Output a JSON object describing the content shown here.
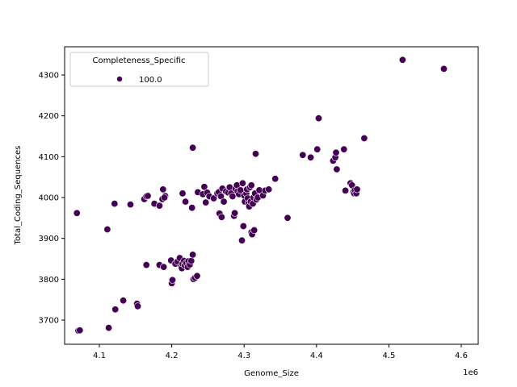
{
  "chart_data": {
    "type": "scatter",
    "title": "",
    "xlabel": "Genome_Size",
    "ylabel": "Total_Coding_Sequences",
    "x_offset_label": "1e6",
    "xlim": [
      4.043,
      4.615
    ],
    "ylim": [
      3640,
      4365
    ],
    "xticks": [
      4.1,
      4.2,
      4.3,
      4.4,
      4.5,
      4.6
    ],
    "xtick_labels": [
      "4.1",
      "4.2",
      "4.3",
      "4.4",
      "4.5",
      "4.6"
    ],
    "yticks": [
      3700,
      3800,
      3900,
      4000,
      4100,
      4200,
      4300
    ],
    "ytick_labels": [
      "3700",
      "3800",
      "3900",
      "4000",
      "4100",
      "4200",
      "4300"
    ],
    "grid": false,
    "legend": {
      "title": "Completeness_Specific",
      "position": "upper left",
      "entries": [
        {
          "label": "100.0",
          "color": "#440154"
        }
      ]
    },
    "marker_color": "#440154",
    "series": [
      {
        "name": "100.0",
        "points": [
          [
            4.069,
            3962
          ],
          [
            4.071,
            3674
          ],
          [
            4.073,
            3675
          ],
          [
            4.111,
            3922
          ],
          [
            4.113,
            3681
          ],
          [
            4.121,
            3985
          ],
          [
            4.122,
            3726
          ],
          [
            4.133,
            3748
          ],
          [
            4.143,
            3983
          ],
          [
            4.152,
            3740
          ],
          [
            4.153,
            3734
          ],
          [
            4.162,
            3996
          ],
          [
            4.165,
            4003
          ],
          [
            4.167,
            4004
          ],
          [
            4.165,
            3835
          ],
          [
            4.176,
            3985
          ],
          [
            4.183,
            3980
          ],
          [
            4.183,
            3835
          ],
          [
            4.187,
            3996
          ],
          [
            4.188,
            4020
          ],
          [
            4.189,
            3830
          ],
          [
            4.191,
            4004
          ],
          [
            4.19,
            4000
          ],
          [
            4.199,
            3846
          ],
          [
            4.2,
            3790
          ],
          [
            4.201,
            3798
          ],
          [
            4.205,
            3838
          ],
          [
            4.208,
            3843
          ],
          [
            4.211,
            3852
          ],
          [
            4.213,
            3832
          ],
          [
            4.214,
            3827
          ],
          [
            4.215,
            3838
          ],
          [
            4.217,
            3845
          ],
          [
            4.218,
            3834
          ],
          [
            4.22,
            3840
          ],
          [
            4.222,
            3830
          ],
          [
            4.223,
            3844
          ],
          [
            4.225,
            3836
          ],
          [
            4.227,
            3845
          ],
          [
            4.229,
            3860
          ],
          [
            4.215,
            4010
          ],
          [
            4.219,
            3990
          ],
          [
            4.228,
            3975
          ],
          [
            4.229,
            4122
          ],
          [
            4.23,
            3800
          ],
          [
            4.232,
            3803
          ],
          [
            4.235,
            3808
          ],
          [
            4.236,
            4013
          ],
          [
            4.243,
            4008
          ],
          [
            4.245,
            4026
          ],
          [
            4.247,
            3988
          ],
          [
            4.249,
            4012
          ],
          [
            4.252,
            4003
          ],
          [
            4.258,
            3998
          ],
          [
            4.263,
            4010
          ],
          [
            4.265,
            4013
          ],
          [
            4.266,
            3961
          ],
          [
            4.268,
            4003
          ],
          [
            4.27,
            4022
          ],
          [
            4.269,
            3952
          ],
          [
            4.272,
            3990
          ],
          [
            4.275,
            4015
          ],
          [
            4.278,
            4012
          ],
          [
            4.28,
            4025
          ],
          [
            4.282,
            4010
          ],
          [
            4.284,
            4003
          ],
          [
            4.286,
            3955
          ],
          [
            4.287,
            3962
          ],
          [
            4.288,
            4022
          ],
          [
            4.29,
            4030
          ],
          [
            4.291,
            4015
          ],
          [
            4.293,
            4008
          ],
          [
            4.295,
            4018
          ],
          [
            4.297,
            3895
          ],
          [
            4.298,
            4035
          ],
          [
            4.299,
            3930
          ],
          [
            4.3,
            4005
          ],
          [
            4.301,
            3990
          ],
          [
            4.303,
            4010
          ],
          [
            4.304,
            4020
          ],
          [
            4.305,
            3998
          ],
          [
            4.306,
            3985
          ],
          [
            4.307,
            3978
          ],
          [
            4.308,
            4025
          ],
          [
            4.309,
            3990
          ],
          [
            4.31,
            4030
          ],
          [
            4.31,
            3915
          ],
          [
            4.311,
            3910
          ],
          [
            4.312,
            3985
          ],
          [
            4.313,
            4000
          ],
          [
            4.314,
            3920
          ],
          [
            4.315,
            4010
          ],
          [
            4.316,
            4107
          ],
          [
            4.317,
            3995
          ],
          [
            4.319,
            4000
          ],
          [
            4.321,
            4018
          ],
          [
            4.326,
            4005
          ],
          [
            4.329,
            4017
          ],
          [
            4.334,
            4020
          ],
          [
            4.343,
            4046
          ],
          [
            4.36,
            3950
          ],
          [
            4.381,
            4104
          ],
          [
            4.392,
            4098
          ],
          [
            4.401,
            4118
          ],
          [
            4.403,
            4194
          ],
          [
            4.423,
            4090
          ],
          [
            4.426,
            4098
          ],
          [
            4.427,
            4110
          ],
          [
            4.428,
            4069
          ],
          [
            4.438,
            4118
          ],
          [
            4.44,
            4017
          ],
          [
            4.447,
            4035
          ],
          [
            4.449,
            4030
          ],
          [
            4.451,
            4014
          ],
          [
            4.452,
            4010
          ],
          [
            4.453,
            4018
          ],
          [
            4.455,
            4010
          ],
          [
            4.456,
            4020
          ],
          [
            4.466,
            4145
          ],
          [
            4.519,
            4337
          ],
          [
            4.576,
            4315
          ]
        ]
      }
    ]
  }
}
